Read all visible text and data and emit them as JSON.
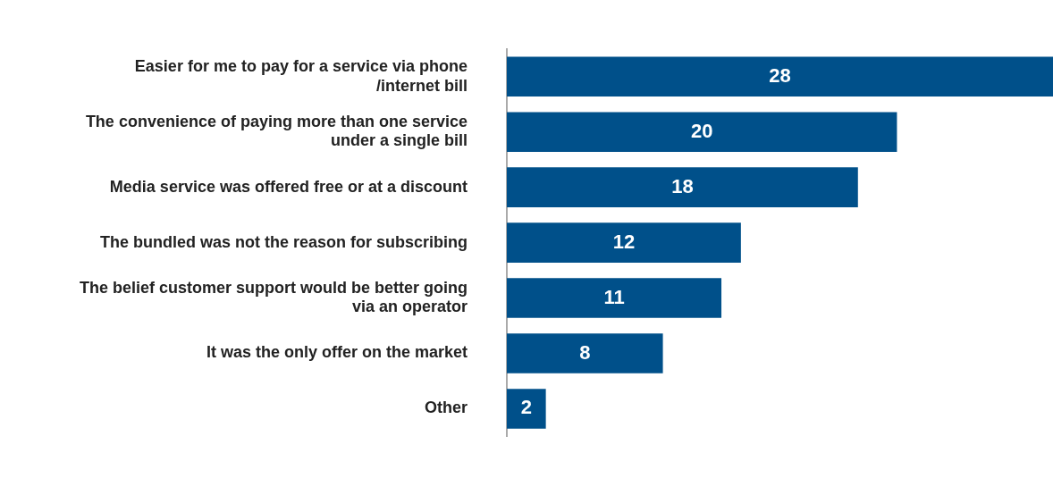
{
  "chart_data": {
    "type": "bar",
    "orientation": "horizontal",
    "categories": [
      "Easier for me to pay for a service via phone /internet bill",
      "The convenience of paying more than one service under a single bill",
      "Media service was offered free or at a discount",
      "The bundled was not the reason for subscribing",
      "The belief customer support would be better going via an operator",
      "It was the only offer on the market",
      "Other"
    ],
    "values": [
      28,
      20,
      18,
      12,
      11,
      8,
      2
    ],
    "color": "#00508a",
    "data_labels": true
  }
}
